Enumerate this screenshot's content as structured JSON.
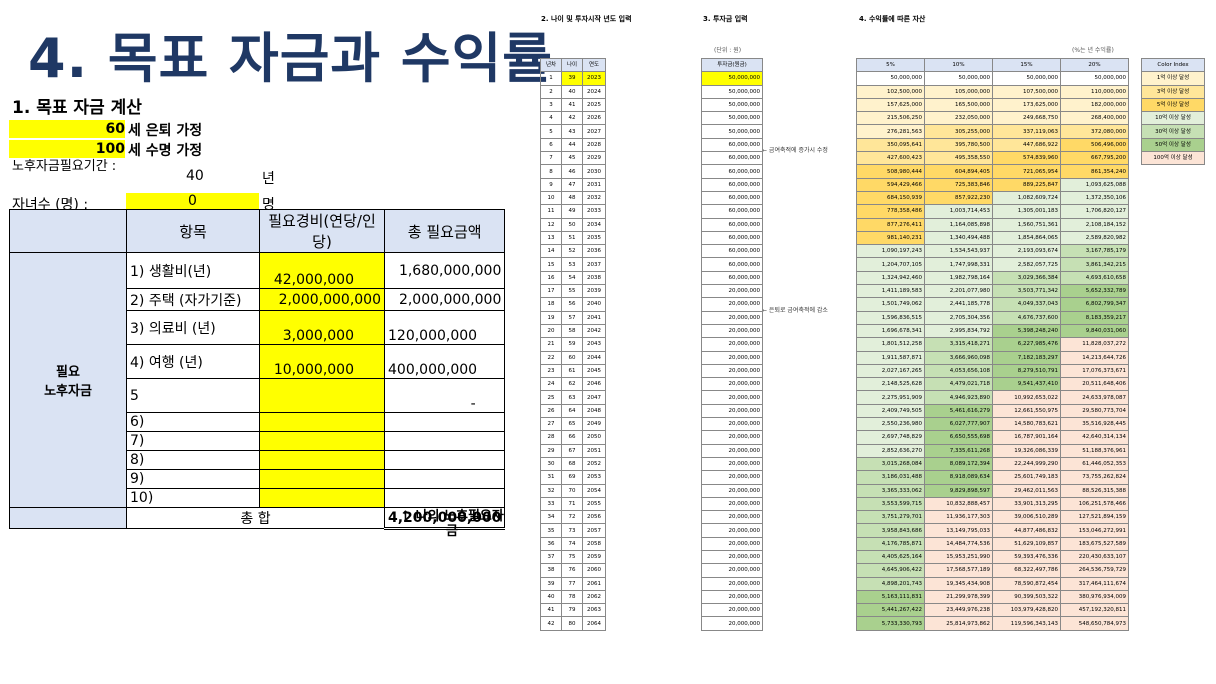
{
  "title": "4. 목표 자금과 수익률",
  "section1": {
    "heading": "1. 목표 자금 계산",
    "retire_age": "60",
    "retire_label": "세 은퇴 가정",
    "life_age": "100",
    "life_label": "세 수명 가정",
    "period_label": "노후자금필요기간 :",
    "period_value": "40",
    "period_unit": "년",
    "children_label": "자녀수 (명) :",
    "children_value": "0",
    "children_unit": "명",
    "col_item": "항목",
    "col_cost": "필요경비(연당/인당)",
    "col_total": "총 필요금액",
    "side_label": "필요\n노후자금",
    "rows": [
      {
        "item": "1) 생활비(년)",
        "cost": "42,000,000",
        "total": "1,680,000,000"
      },
      {
        "item": "2) 주택 (자가기준)",
        "cost": "2,000,000,000",
        "total": "2,000,000,000"
      },
      {
        "item": "3) 의료비 (년)",
        "cost": "3,000,000",
        "total": "120,000,000"
      },
      {
        "item": "4) 여행 (년)",
        "cost": "10,000,000",
        "total": "400,000,000"
      },
      {
        "item": "5",
        "cost": "",
        "total": "-"
      },
      {
        "item": "6)",
        "cost": "",
        "total": ""
      },
      {
        "item": "7)",
        "cost": "",
        "total": ""
      },
      {
        "item": "8)",
        "cost": "",
        "total": ""
      },
      {
        "item": "9)",
        "cost": "",
        "total": ""
      },
      {
        "item": "10)",
        "cost": "",
        "total": ""
      }
    ],
    "sum_label": "총 합",
    "sum_value": "4,200,000,000",
    "note": "↑ 나의 노후필요자금"
  },
  "section2": {
    "heading": "2. 나이 및 투자시작 년도 입력",
    "headers": [
      "년차",
      "나이",
      "연도"
    ]
  },
  "section3": {
    "heading": "3. 투자금 입력",
    "unit_note": "(단위 : 원)",
    "header": "투자금(원금)",
    "annotation1": "← 금여축적에 증가시 수정",
    "annotation2": "← 은퇴로 금여축적에 감소"
  },
  "section4": {
    "heading": "4. 수익률에 따른 자산",
    "rate_note": "(%는 년 수익률)",
    "headers": [
      "5%",
      "10%",
      "15%",
      "20%"
    ]
  },
  "color_index": {
    "header": "Color Index",
    "items": [
      {
        "label": "1억 이상 달성",
        "color": "#fff2cc"
      },
      {
        "label": "3억 이상 달성",
        "color": "#ffe699"
      },
      {
        "label": "5억 이상 달성",
        "color": "#ffd966"
      },
      {
        "label": "10억 이상 달성",
        "color": "#e2efda"
      },
      {
        "label": "30억 이상 달성",
        "color": "#c6e0b4"
      },
      {
        "label": "50억 이상 달성",
        "color": "#a9d08e"
      },
      {
        "label": "100억 이상 달성",
        "color": "#fce4d6"
      }
    ]
  },
  "grid_rows": [
    [
      "1",
      "39",
      "2023",
      "50,000,000",
      "50,000,000",
      "50,000,000",
      "50,000,000",
      "50,000,000"
    ],
    [
      "2",
      "40",
      "2024",
      "50,000,000",
      "102,500,000",
      "105,000,000",
      "107,500,000",
      "110,000,000"
    ],
    [
      "3",
      "41",
      "2025",
      "50,000,000",
      "157,625,000",
      "165,500,000",
      "173,625,000",
      "182,000,000"
    ],
    [
      "4",
      "42",
      "2026",
      "50,000,000",
      "215,506,250",
      "232,050,000",
      "249,668,750",
      "268,400,000"
    ],
    [
      "5",
      "43",
      "2027",
      "50,000,000",
      "276,281,563",
      "305,255,000",
      "337,119,063",
      "372,080,000"
    ],
    [
      "6",
      "44",
      "2028",
      "60,000,000",
      "350,095,641",
      "395,780,500",
      "447,686,922",
      "506,496,000"
    ],
    [
      "7",
      "45",
      "2029",
      "60,000,000",
      "427,600,423",
      "495,358,550",
      "574,839,960",
      "667,795,200"
    ],
    [
      "8",
      "46",
      "2030",
      "60,000,000",
      "508,980,444",
      "604,894,405",
      "721,065,954",
      "861,354,240"
    ],
    [
      "9",
      "47",
      "2031",
      "60,000,000",
      "594,429,466",
      "725,383,846",
      "889,225,847",
      "1,093,625,088"
    ],
    [
      "10",
      "48",
      "2032",
      "60,000,000",
      "684,150,939",
      "857,922,230",
      "1,082,609,724",
      "1,372,350,106"
    ],
    [
      "11",
      "49",
      "2033",
      "60,000,000",
      "778,358,486",
      "1,003,714,453",
      "1,305,001,183",
      "1,706,820,127"
    ],
    [
      "12",
      "50",
      "2034",
      "60,000,000",
      "877,276,411",
      "1,164,085,898",
      "1,560,751,361",
      "2,108,184,152"
    ],
    [
      "13",
      "51",
      "2035",
      "60,000,000",
      "981,140,231",
      "1,340,494,488",
      "1,854,864,065",
      "2,589,820,982"
    ],
    [
      "14",
      "52",
      "2036",
      "60,000,000",
      "1,090,197,243",
      "1,534,543,937",
      "2,193,093,674",
      "3,167,785,179"
    ],
    [
      "15",
      "53",
      "2037",
      "60,000,000",
      "1,204,707,105",
      "1,747,998,331",
      "2,582,057,725",
      "3,861,342,215"
    ],
    [
      "16",
      "54",
      "2038",
      "60,000,000",
      "1,324,942,460",
      "1,982,798,164",
      "3,029,366,384",
      "4,693,610,658"
    ],
    [
      "17",
      "55",
      "2039",
      "20,000,000",
      "1,411,189,583",
      "2,201,077,980",
      "3,503,771,342",
      "5,652,332,789"
    ],
    [
      "18",
      "56",
      "2040",
      "20,000,000",
      "1,501,749,062",
      "2,441,185,778",
      "4,049,337,043",
      "6,802,799,347"
    ],
    [
      "19",
      "57",
      "2041",
      "20,000,000",
      "1,596,836,515",
      "2,705,304,356",
      "4,676,737,600",
      "8,183,359,217"
    ],
    [
      "20",
      "58",
      "2042",
      "20,000,000",
      "1,696,678,341",
      "2,995,834,792",
      "5,398,248,240",
      "9,840,031,060"
    ],
    [
      "21",
      "59",
      "2043",
      "20,000,000",
      "1,801,512,258",
      "3,315,418,271",
      "6,227,985,476",
      "11,828,037,272"
    ],
    [
      "22",
      "60",
      "2044",
      "20,000,000",
      "1,911,587,871",
      "3,666,960,098",
      "7,182,183,297",
      "14,213,644,726"
    ],
    [
      "23",
      "61",
      "2045",
      "20,000,000",
      "2,027,167,265",
      "4,053,656,108",
      "8,279,510,791",
      "17,076,373,671"
    ],
    [
      "24",
      "62",
      "2046",
      "20,000,000",
      "2,148,525,628",
      "4,479,021,718",
      "9,541,437,410",
      "20,511,648,406"
    ],
    [
      "25",
      "63",
      "2047",
      "20,000,000",
      "2,275,951,909",
      "4,946,923,890",
      "10,992,653,022",
      "24,633,978,087"
    ],
    [
      "26",
      "64",
      "2048",
      "20,000,000",
      "2,409,749,505",
      "5,461,616,279",
      "12,661,550,975",
      "29,580,773,704"
    ],
    [
      "27",
      "65",
      "2049",
      "20,000,000",
      "2,550,236,980",
      "6,027,777,907",
      "14,580,783,621",
      "35,516,928,445"
    ],
    [
      "28",
      "66",
      "2050",
      "20,000,000",
      "2,697,748,829",
      "6,650,555,698",
      "16,787,901,164",
      "42,640,314,134"
    ],
    [
      "29",
      "67",
      "2051",
      "20,000,000",
      "2,852,636,270",
      "7,335,611,268",
      "19,326,086,339",
      "51,188,376,961"
    ],
    [
      "30",
      "68",
      "2052",
      "20,000,000",
      "3,015,268,084",
      "8,089,172,394",
      "22,244,999,290",
      "61,446,052,353"
    ],
    [
      "31",
      "69",
      "2053",
      "20,000,000",
      "3,186,031,488",
      "8,918,089,634",
      "25,601,749,183",
      "73,755,262,824"
    ],
    [
      "32",
      "70",
      "2054",
      "20,000,000",
      "3,365,333,062",
      "9,829,898,597",
      "29,462,011,563",
      "88,526,315,388"
    ],
    [
      "33",
      "71",
      "2055",
      "20,000,000",
      "3,553,599,715",
      "10,832,888,457",
      "33,901,313,295",
      "106,251,578,466"
    ],
    [
      "34",
      "72",
      "2056",
      "20,000,000",
      "3,751,279,701",
      "11,936,177,303",
      "39,006,510,289",
      "127,521,894,159"
    ],
    [
      "35",
      "73",
      "2057",
      "20,000,000",
      "3,958,843,686",
      "13,149,795,033",
      "44,877,486,832",
      "153,046,272,991"
    ],
    [
      "36",
      "74",
      "2058",
      "20,000,000",
      "4,176,785,871",
      "14,484,774,536",
      "51,629,109,857",
      "183,675,527,589"
    ],
    [
      "37",
      "75",
      "2059",
      "20,000,000",
      "4,405,625,164",
      "15,953,251,990",
      "59,393,476,336",
      "220,430,633,107"
    ],
    [
      "38",
      "76",
      "2060",
      "20,000,000",
      "4,645,906,422",
      "17,568,577,189",
      "68,322,497,786",
      "264,536,759,729"
    ],
    [
      "39",
      "77",
      "2061",
      "20,000,000",
      "4,898,201,743",
      "19,345,434,908",
      "78,590,872,454",
      "317,464,111,674"
    ],
    [
      "40",
      "78",
      "2062",
      "20,000,000",
      "5,163,111,831",
      "21,299,978,399",
      "90,399,503,322",
      "380,976,934,009"
    ],
    [
      "41",
      "79",
      "2063",
      "20,000,000",
      "5,441,267,422",
      "23,449,976,238",
      "103,979,428,820",
      "457,192,320,811"
    ],
    [
      "42",
      "80",
      "2064",
      "20,000,000",
      "5,733,330,793",
      "25,814,973,862",
      "119,596,343,143",
      "548,650,784,973"
    ]
  ]
}
